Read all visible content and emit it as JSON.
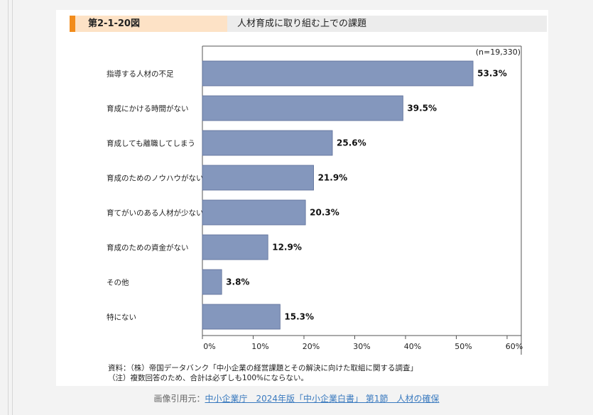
{
  "figure": {
    "number": "第2-1-20図",
    "title": "人材育成に取り組む上での課題"
  },
  "chart_data": {
    "type": "bar",
    "orientation": "horizontal",
    "sample_note": "(n=19,330)",
    "categories": [
      "指導する人材の不足",
      "育成にかける時間がない",
      "育成しても離職してしまう",
      "育成のためのノウハウがない",
      "育てがいのある人材が少ない",
      "育成のための資金がない",
      "その他",
      "特にない"
    ],
    "values": [
      53.3,
      39.5,
      25.6,
      21.9,
      20.3,
      12.9,
      3.8,
      15.3
    ],
    "value_labels": [
      "53.3%",
      "39.5%",
      "25.6%",
      "21.9%",
      "20.3%",
      "12.9%",
      "3.8%",
      "15.3%"
    ],
    "xlim": [
      0,
      60
    ],
    "ticks": [
      0,
      10,
      20,
      30,
      40,
      50,
      60
    ],
    "tick_labels": [
      "0%",
      "10%",
      "20%",
      "30%",
      "40%",
      "50%",
      "60%"
    ],
    "grid": false,
    "bar_color": "#8497bd",
    "bar_border": "#5d6f99"
  },
  "notes": {
    "source": "資料：（株）帝国データバンク「中小企業の経営課題とその解決に向けた取組に関する調査」",
    "note": "（注）複数回答のため、合計は必ずしも100%にならない。"
  },
  "credit": {
    "prefix": "画像引用元：",
    "link": "中小企業庁　2024年版「中小企業白書」 第1節　人材の確保"
  }
}
